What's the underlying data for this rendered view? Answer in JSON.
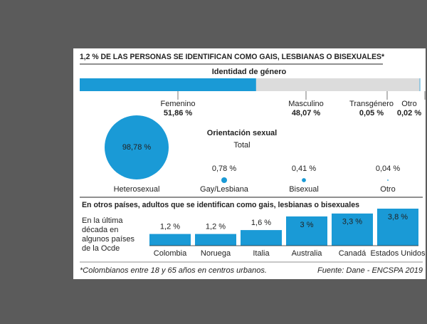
{
  "title": "1,2 % DE LAS PERSONAS SE IDENTIFICAN COMO GAIS, LESBIANAS O BISEXUALES*",
  "chart_data": [
    {
      "type": "stacked-bar",
      "title": "Identidad de género",
      "categories": [
        "Femenino",
        "Masculino",
        "Transgénero",
        "Otro"
      ],
      "values": [
        51.86,
        48.07,
        0.05,
        0.02
      ],
      "value_labels": [
        "51,86 %",
        "48,07 %",
        "0,05 %",
        "0,02 %"
      ],
      "colors": [
        "#1a9ad6",
        "#dcdcdc",
        "#1a9ad6",
        "#1a9ad6"
      ]
    },
    {
      "type": "bubble",
      "title": "Orientación sexual",
      "subtitle": "Total",
      "categories": [
        "Heterosexual",
        "Gay/Lesbiana",
        "Bisexual",
        "Otro"
      ],
      "values": [
        98.78,
        0.78,
        0.41,
        0.04
      ],
      "value_labels": [
        "98,78 %",
        "0,78 %",
        "0,41 %",
        "0,04 %"
      ],
      "color": "#1a9ad6"
    },
    {
      "type": "bar",
      "title": "En otros países, adultos que se identifican como gais, lesbianas o bisexuales",
      "subtitle": "En la última década en algunos países de la Ocde",
      "categories": [
        "Colombia",
        "Noruega",
        "Italia",
        "Australia",
        "Canadá",
        "Estados Unidos"
      ],
      "values": [
        1.2,
        1.2,
        1.6,
        3,
        3.3,
        3.8
      ],
      "value_labels": [
        "1,2 %",
        "1,2 %",
        "1,6 %",
        "3 %",
        "3,3 %",
        "3,8 %"
      ],
      "color": "#1a9ad6"
    }
  ],
  "footnote": "*Colombianos entre 18 y 65 años en centros urbanos.",
  "source": "Fuente: Dane - ENCSPA 2019"
}
